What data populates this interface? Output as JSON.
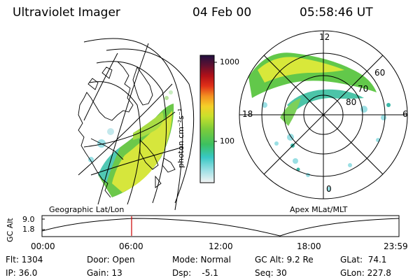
{
  "header": {
    "instrument": "Ultraviolet Imager",
    "date": "04 Feb 00",
    "time": "05:58:46 UT"
  },
  "colorbar": {
    "unit_label": "photon cm⁻²s⁻¹",
    "ticks": [
      "1000",
      "100"
    ]
  },
  "polar_plot": {
    "mlt_labels": [
      "12",
      "18",
      "6",
      "0"
    ],
    "mlat_labels": [
      "60",
      "70",
      "80"
    ]
  },
  "panel_labels": {
    "left": "Geographic Lat/Lon",
    "right": "Apex MLat/MLT"
  },
  "altitude_plot": {
    "ylabel": "GC Alt",
    "yticks": [
      "9.0",
      "1.8"
    ],
    "xticks": [
      "00:00",
      "06:00",
      "12:00",
      "18:00",
      "23:59"
    ],
    "marker_time": "06:00"
  },
  "status": {
    "flt": "Flt: 1304",
    "ip": "IP: 36.0",
    "door": "Door: Open",
    "gain": "Gain: 13",
    "mode": "Mode: Normal",
    "dsp": "Dsp:    -5.1",
    "gcalt": "GC Alt: 9.2 Re",
    "seq": "Seq: 30",
    "glat": "GLat:  74.1",
    "glon": "GLon: 227.8"
  },
  "colors": {
    "contour": "#000000",
    "marker": "#cc0000",
    "aurora_green": "#5fc94a",
    "aurora_yellow": "#d8e83a",
    "aurora_cyan": "#54d0c8"
  }
}
